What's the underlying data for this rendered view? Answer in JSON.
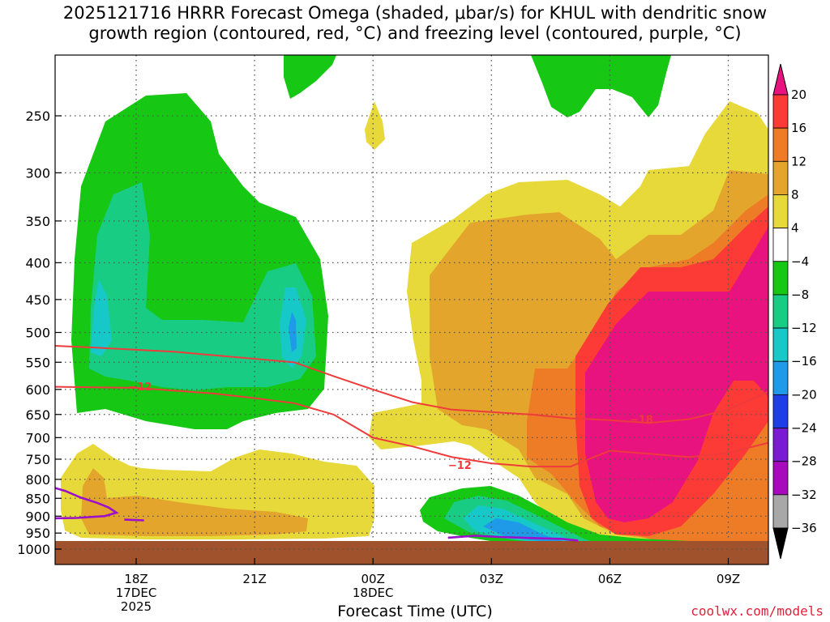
{
  "title": {
    "line1": "2025121716 HRRR Forecast Omega (shaded, μbar/s) for KHUL with dendritic snow",
    "line2": "growth region (contoured, red, °C) and freezing level (contoured, purple, °C)"
  },
  "credit": "coolwx.com/models",
  "colors": {
    "ground": "#a0522d",
    "isotherm": "#ee3b3b",
    "freezing": "#9b10c8",
    "grid": "#555555"
  },
  "chart_data": {
    "type": "heatmap",
    "title": "2025121716 HRRR Forecast Omega (shaded, μbar/s) for KHUL with dendritic snow growth region (contoured, red, °C) and freezing level (contoured, purple, °C)",
    "xlabel": "Forecast Time (UTC)",
    "ylabel": "",
    "x_ticks": [
      {
        "t": 2,
        "lines": [
          "18Z",
          "17DEC",
          "2025"
        ]
      },
      {
        "t": 5,
        "lines": [
          "21Z"
        ]
      },
      {
        "t": 8,
        "lines": [
          "00Z",
          "18DEC"
        ]
      },
      {
        "t": 11,
        "lines": [
          "03Z"
        ]
      },
      {
        "t": 14,
        "lines": [
          "06Z"
        ]
      },
      {
        "t": 17,
        "lines": [
          "09Z"
        ]
      }
    ],
    "y_ticks": [
      250,
      300,
      350,
      400,
      450,
      500,
      550,
      600,
      650,
      700,
      750,
      800,
      850,
      900,
      950,
      1000
    ],
    "colorbar": {
      "labels": [
        "20",
        "16",
        "12",
        "8",
        "4",
        "−4",
        "−8",
        "−12",
        "−16",
        "−20",
        "−24",
        "−28",
        "−32",
        "−36"
      ],
      "colors": [
        "#e8137f",
        "#fd3b36",
        "#ee7b25",
        "#e3a52c",
        "#e8d93a",
        "#ffffff",
        "#16c714",
        "#19cc84",
        "#17c8c9",
        "#1e9ae9",
        "#1e3ee6",
        "#7a1bd3",
        "#a709bd",
        "#a8a8a8",
        "#000000"
      ]
    },
    "contours": {
      "dendritic": [
        {
          "label": "−12",
          "points": [
            [
              -1.98,
              590
            ],
            [
              0,
              595
            ],
            [
              2,
              597
            ],
            [
              4,
              608
            ],
            [
              5,
              617
            ],
            [
              6,
              627
            ],
            [
              7,
              650
            ],
            [
              8,
              700
            ],
            [
              9,
              720
            ],
            [
              10,
              745
            ],
            [
              11,
              760
            ],
            [
              12,
              768
            ],
            [
              13,
              768
            ],
            [
              14,
              730
            ],
            [
              15,
              737
            ],
            [
              16,
              745
            ],
            [
              17,
              735
            ],
            [
              18,
              712
            ]
          ]
        },
        {
          "label": "−18",
          "points": [
            [
              -1.98,
              517
            ],
            [
              0,
              522
            ],
            [
              1,
              525
            ],
            [
              3,
              532
            ],
            [
              4,
              538
            ],
            [
              6,
              550
            ],
            [
              7,
              575
            ],
            [
              8,
              600
            ],
            [
              9,
              625
            ],
            [
              10,
              640
            ],
            [
              11,
              645
            ],
            [
              12,
              650
            ],
            [
              13,
              658
            ],
            [
              14,
              662
            ],
            [
              15,
              668
            ],
            [
              16,
              660
            ],
            [
              17,
              640
            ],
            [
              18,
              605
            ]
          ]
        }
      ],
      "freezing": [
        {
          "label": "0",
          "segments": [
            [
              [
                -1.98,
                788
              ],
              [
                -1,
                803
              ],
              [
                -0.3,
                815
              ],
              [
                0.2,
                830
              ],
              [
                0.6,
                848
              ],
              [
                1,
                862
              ],
              [
                1.3,
                875
              ],
              [
                1.5,
                890
              ],
              [
                1.2,
                900
              ],
              [
                0.5,
                905
              ],
              [
                -0.5,
                907
              ],
              [
                -1.98,
                925
              ]
            ],
            [
              [
                1.7,
                910
              ],
              [
                2.2,
                912
              ]
            ],
            [
              [
                9.9,
                964
              ],
              [
                10.6,
                958
              ],
              [
                11.2,
                962
              ],
              [
                12,
                965
              ],
              [
                12.8,
                968
              ],
              [
                13.2,
                973
              ]
            ]
          ]
        }
      ]
    }
  }
}
